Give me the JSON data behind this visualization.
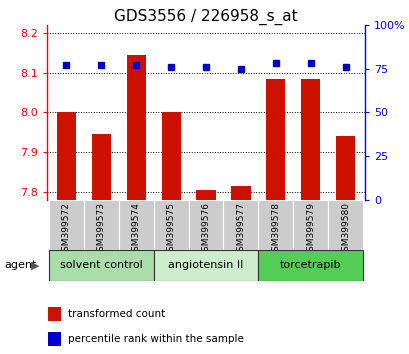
{
  "title": "GDS3556 / 226958_s_at",
  "samples": [
    "GSM399572",
    "GSM399573",
    "GSM399574",
    "GSM399575",
    "GSM399576",
    "GSM399577",
    "GSM399578",
    "GSM399579",
    "GSM399580"
  ],
  "red_values": [
    8.0,
    7.945,
    8.145,
    8.0,
    7.805,
    7.815,
    8.085,
    8.085,
    7.94
  ],
  "blue_values": [
    77,
    77,
    77,
    76,
    76,
    75,
    78,
    78,
    76
  ],
  "ylim_left": [
    7.78,
    8.22
  ],
  "ylim_right": [
    0,
    100
  ],
  "yticks_left": [
    7.8,
    7.9,
    8.0,
    8.1,
    8.2
  ],
  "yticks_right": [
    0,
    25,
    50,
    75,
    100
  ],
  "ytick_labels_right": [
    "0",
    "25",
    "50",
    "75",
    "100%"
  ],
  "groups": [
    {
      "label": "solvent control",
      "indices": [
        0,
        1,
        2
      ],
      "color": "#aaddaa"
    },
    {
      "label": "angiotensin II",
      "indices": [
        3,
        4,
        5
      ],
      "color": "#cceecc"
    },
    {
      "label": "torcetrapib",
      "indices": [
        6,
        7,
        8
      ],
      "color": "#55cc55"
    }
  ],
  "bar_color": "#cc1100",
  "dot_color": "#0000cc",
  "grid_color": "#000000",
  "bg_plot": "#ffffff",
  "agent_label": "agent",
  "legend_red": "transformed count",
  "legend_blue": "percentile rank within the sample",
  "bar_width": 0.55,
  "title_fontsize": 11
}
